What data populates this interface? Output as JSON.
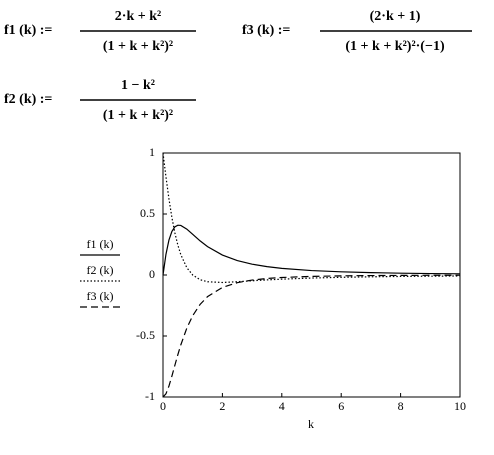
{
  "formulas": [
    {
      "lhs": "f1 (k) :=",
      "num": "2·k + k²",
      "den": "(1 + k + k²)²"
    },
    {
      "lhs": "f2 (k) :=",
      "num": "1 − k²",
      "den": "(1 + k + k²)²"
    },
    {
      "lhs": "f3 (k) :=",
      "num": "(2·k + 1)",
      "den": "(1 + k + k²)²·(−1)"
    }
  ],
  "chart_data": {
    "type": "line",
    "x_label": "k",
    "x": [
      0,
      0.1,
      0.2,
      0.3,
      0.4,
      0.5,
      0.6,
      0.8,
      1,
      1.25,
      1.5,
      2,
      2.5,
      3,
      3.5,
      4,
      5,
      6,
      7,
      8,
      9,
      10
    ],
    "series": [
      {
        "name": "f1 (k)",
        "color": "#000000",
        "line_style": "solid",
        "values": [
          0,
          0.1704,
          0.2862,
          0.3571,
          0.3945,
          0.4082,
          0.4061,
          0.3762,
          0.3333,
          0.2795,
          0.2327,
          0.1633,
          0.1183,
          0.0888,
          0.0686,
          0.0544,
          0.0364,
          0.026,
          0.0194,
          0.015,
          0.012,
          0.0097
        ]
      },
      {
        "name": "f2 (k)",
        "color": "#000000",
        "line_style": "dotted",
        "values": [
          1,
          0.8035,
          0.6243,
          0.471,
          0.3452,
          0.2449,
          0.1666,
          0.0605,
          0,
          -0.0387,
          -0.0554,
          -0.0612,
          -0.0552,
          -0.0473,
          -0.0401,
          -0.034,
          -0.025,
          -0.0189,
          -0.0148,
          -0.0118,
          -0.0097,
          -0.008
        ]
      },
      {
        "name": "f3 (k)",
        "color": "#000000",
        "line_style": "dashed",
        "values": [
          -1,
          -0.9739,
          -0.9105,
          -0.8281,
          -0.7396,
          -0.6531,
          -0.5727,
          -0.4367,
          -0.3333,
          -0.2408,
          -0.1773,
          -0.102,
          -0.0631,
          -0.0414,
          -0.0285,
          -0.0204,
          -0.0114,
          -0.007,
          -0.0046,
          -0.0032,
          -0.0023,
          -0.0017
        ]
      }
    ],
    "xlim": [
      0,
      10
    ],
    "xticks": [
      0,
      2,
      4,
      6,
      8,
      10
    ],
    "ylim": [
      -1,
      1
    ],
    "yticks": [
      -1,
      -0.5,
      0,
      0.5,
      1
    ]
  }
}
